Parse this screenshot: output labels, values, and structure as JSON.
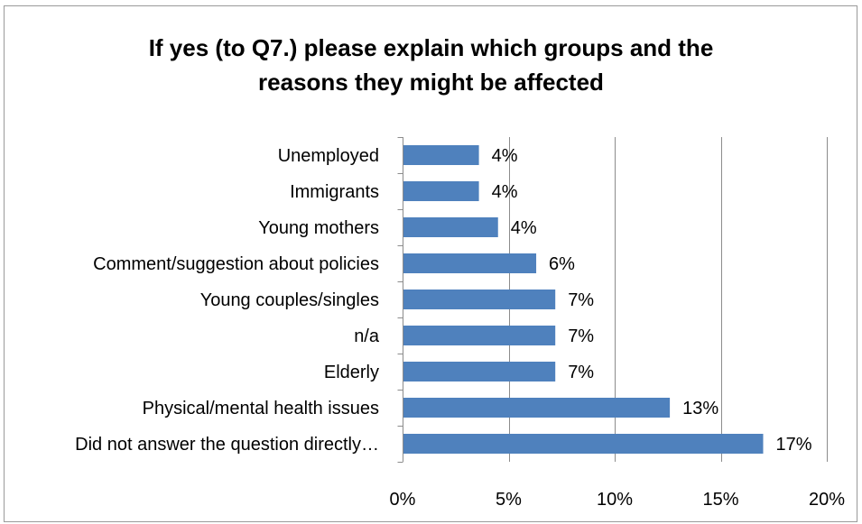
{
  "chart_data": {
    "type": "bar",
    "orientation": "horizontal",
    "title_lines": [
      "If yes (to Q7.) please explain which groups and the",
      "reasons they might be affected"
    ],
    "categories": [
      "Unemployed",
      "Immigrants",
      "Young mothers",
      "Comment/suggestion about policies",
      "Young couples/singles",
      "n/a",
      "Elderly",
      "Physical/mental health issues",
      "Did not answer the question directly…"
    ],
    "values": [
      3.6,
      3.6,
      4.5,
      6.3,
      7.2,
      7.2,
      7.2,
      12.6,
      17.0
    ],
    "value_labels": [
      "4%",
      "4%",
      "4%",
      "6%",
      "7%",
      "7%",
      "7%",
      "13%",
      "17%"
    ],
    "xlim": [
      0,
      20
    ],
    "xticks": [
      0,
      5,
      10,
      15,
      20
    ],
    "xtick_labels": [
      "0%",
      "5%",
      "10%",
      "15%",
      "20%"
    ],
    "grid": "vertical major gridlines",
    "legend": "none",
    "bar_color": "#4f81bd",
    "grid_color": "#8c8c8c"
  }
}
